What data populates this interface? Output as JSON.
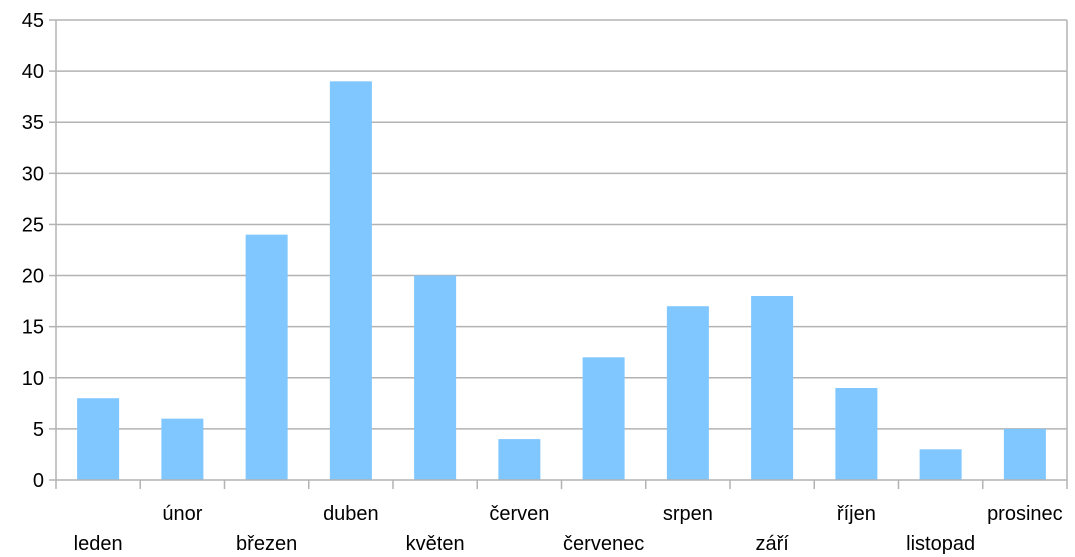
{
  "chart_data": {
    "type": "bar",
    "categories": [
      "leden",
      "únor",
      "březen",
      "duben",
      "květen",
      "červen",
      "červenec",
      "srpen",
      "září",
      "říjen",
      "listopad",
      "prosinec"
    ],
    "values": [
      8,
      6,
      24,
      39,
      20,
      4,
      12,
      17,
      18,
      9,
      3,
      5
    ],
    "ylim": [
      0,
      45
    ],
    "yticks": [
      "0",
      "5",
      "10",
      "15",
      "20",
      "25",
      "30",
      "35",
      "40",
      "45"
    ],
    "grid": true,
    "legend": "none",
    "title": "",
    "xlabel": "",
    "ylabel": "",
    "bar_color": "#80c6ff",
    "grid_color": "#b3b3b3"
  }
}
